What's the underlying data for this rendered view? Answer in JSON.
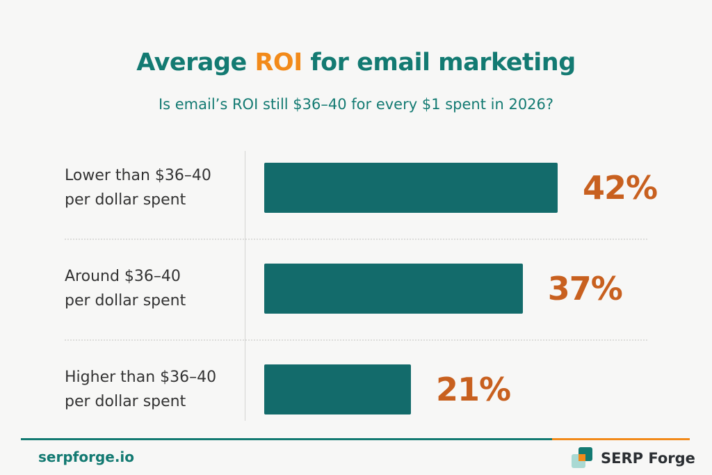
{
  "title": {
    "prefix": "Average ",
    "highlight": "ROI",
    "suffix": " for email marketing"
  },
  "subtitle": "Is email’s ROI still $36–40 for every $1 spent in 2026?",
  "colors": {
    "bar": "#136b6b",
    "value_text": "#c8601f",
    "title": "#137a72",
    "highlight": "#f28a1a"
  },
  "chart_data": {
    "type": "bar",
    "orientation": "horizontal",
    "categories": [
      [
        "Lower than $36–40",
        "per dollar spent"
      ],
      [
        "Around $36–40",
        "per dollar spent"
      ],
      [
        "Higher than $36–40",
        "per dollar spent"
      ]
    ],
    "values": [
      42,
      37,
      21
    ],
    "value_labels": [
      "42%",
      "37%",
      "21%"
    ],
    "xlim": [
      0,
      42
    ],
    "grid": false,
    "legend": "none"
  },
  "footer": {
    "site": "serpforge.io",
    "brand": "SERP Forge",
    "brand_icon": "serp-forge-logo-icon",
    "line_colors": [
      "#137a72",
      "#f28a1a"
    ]
  }
}
